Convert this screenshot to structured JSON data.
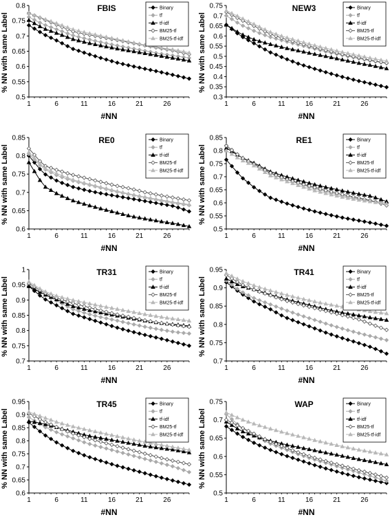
{
  "chart_data": [
    {
      "type": "line",
      "title": "FBIS",
      "xlabel": "#NN",
      "ylabel": "% NN with same Label",
      "ylim": [
        0.5,
        0.8
      ],
      "yticks": [
        "0.5",
        "0.55",
        "0.6",
        "0.65",
        "0.7",
        "0.75",
        "0.8"
      ],
      "xlim": [
        1,
        30
      ],
      "xticks": [
        "1",
        "6",
        "11",
        "16",
        "21",
        "26"
      ],
      "legend": "top-right",
      "series": [
        {
          "name": "Binary",
          "anchors": [
            0.735,
            0.706,
            0.683,
            0.658,
            0.642,
            0.627,
            0.613,
            0.602,
            0.592,
            0.582,
            0.571,
            0.56
          ]
        },
        {
          "name": "tf",
          "anchors": [
            0.762,
            0.738,
            0.72,
            0.702,
            0.69,
            0.679,
            0.669,
            0.66,
            0.651,
            0.642,
            0.635,
            0.628
          ]
        },
        {
          "name": "tf-idf",
          "anchors": [
            0.752,
            0.725,
            0.708,
            0.69,
            0.678,
            0.668,
            0.659,
            0.651,
            0.643,
            0.635,
            0.627,
            0.619
          ]
        },
        {
          "name": "BM25-tf",
          "anchors": [
            0.775,
            0.755,
            0.735,
            0.715,
            0.705,
            0.696,
            0.687,
            0.678,
            0.669,
            0.66,
            0.651,
            0.64
          ]
        },
        {
          "name": "BM25-tf-idf",
          "anchors": [
            0.775,
            0.757,
            0.74,
            0.722,
            0.71,
            0.7,
            0.69,
            0.68,
            0.67,
            0.662,
            0.655,
            0.645
          ]
        }
      ]
    },
    {
      "type": "line",
      "title": "NEW3",
      "xlabel": "#NN",
      "ylabel": "% NN with same Label",
      "ylim": [
        0.3,
        0.75
      ],
      "yticks": [
        "0.3",
        "0.35",
        "0.4",
        "0.45",
        "0.5",
        "0.55",
        "0.6",
        "0.65",
        "0.7",
        "0.75"
      ],
      "xlim": [
        1,
        30
      ],
      "xticks": [
        "1",
        "6",
        "11",
        "16",
        "21",
        "26"
      ],
      "legend": "top-right",
      "series": [
        {
          "name": "Binary",
          "anchors": [
            0.655,
            0.6,
            0.56,
            0.52,
            0.49,
            0.462,
            0.44,
            0.418,
            0.398,
            0.38,
            0.364,
            0.348
          ]
        },
        {
          "name": "tf",
          "anchors": [
            0.7,
            0.655,
            0.622,
            0.595,
            0.575,
            0.556,
            0.538,
            0.52,
            0.505,
            0.49,
            0.477,
            0.465
          ]
        },
        {
          "name": "tf-idf",
          "anchors": [
            0.655,
            0.61,
            0.58,
            0.56,
            0.542,
            0.527,
            0.512,
            0.498,
            0.483,
            0.468,
            0.455,
            0.44
          ]
        },
        {
          "name": "BM25-tf",
          "anchors": [
            0.718,
            0.68,
            0.646,
            0.61,
            0.585,
            0.565,
            0.545,
            0.527,
            0.51,
            0.495,
            0.48,
            0.467
          ]
        },
        {
          "name": "BM25-tf-idf",
          "anchors": [
            0.725,
            0.69,
            0.655,
            0.62,
            0.595,
            0.575,
            0.555,
            0.537,
            0.52,
            0.505,
            0.49,
            0.477
          ]
        }
      ]
    },
    {
      "type": "line",
      "title": "RE0",
      "xlabel": "#NN",
      "ylabel": "% NN with same Label",
      "ylim": [
        0.6,
        0.85
      ],
      "yticks": [
        "0.6",
        "0.65",
        "0.7",
        "0.75",
        "0.8",
        "0.85"
      ],
      "xlim": [
        1,
        30
      ],
      "xticks": [
        "1",
        "6",
        "11",
        "16",
        "21",
        "26"
      ],
      "legend": "top-right",
      "series": [
        {
          "name": "Binary",
          "anchors": [
            0.8,
            0.752,
            0.73,
            0.715,
            0.705,
            0.697,
            0.69,
            0.683,
            0.676,
            0.669,
            0.662,
            0.648
          ]
        },
        {
          "name": "tf",
          "anchors": [
            0.805,
            0.765,
            0.745,
            0.732,
            0.722,
            0.712,
            0.702,
            0.694,
            0.686,
            0.678,
            0.671,
            0.665
          ]
        },
        {
          "name": "tf-idf",
          "anchors": [
            0.782,
            0.718,
            0.695,
            0.678,
            0.666,
            0.655,
            0.645,
            0.635,
            0.628,
            0.621,
            0.615,
            0.607
          ]
        },
        {
          "name": "BM25-tf",
          "anchors": [
            0.82,
            0.774,
            0.76,
            0.748,
            0.738,
            0.728,
            0.718,
            0.71,
            0.7,
            0.692,
            0.685,
            0.678
          ]
        },
        {
          "name": "BM25-tf-idf",
          "anchors": [
            0.81,
            0.768,
            0.75,
            0.735,
            0.724,
            0.714,
            0.704,
            0.695,
            0.687,
            0.68,
            0.673,
            0.667
          ]
        }
      ]
    },
    {
      "type": "line",
      "title": "RE1",
      "xlabel": "#NN",
      "ylabel": "% NN with same Label",
      "ylim": [
        0.5,
        0.85
      ],
      "yticks": [
        "0.5",
        "0.55",
        "0.6",
        "0.65",
        "0.7",
        "0.75",
        "0.8",
        "0.85"
      ],
      "xlim": [
        1,
        30
      ],
      "xticks": [
        "1",
        "6",
        "11",
        "16",
        "21",
        "26"
      ],
      "legend": "top-right",
      "series": [
        {
          "name": "Binary",
          "anchors": [
            0.765,
            0.7,
            0.655,
            0.62,
            0.6,
            0.583,
            0.568,
            0.555,
            0.543,
            0.533,
            0.523,
            0.512
          ]
        },
        {
          "name": "tf",
          "anchors": [
            0.82,
            0.775,
            0.745,
            0.712,
            0.692,
            0.673,
            0.655,
            0.64,
            0.627,
            0.616,
            0.607,
            0.598
          ]
        },
        {
          "name": "tf-idf",
          "anchors": [
            0.81,
            0.775,
            0.75,
            0.72,
            0.702,
            0.686,
            0.671,
            0.658,
            0.646,
            0.635,
            0.625,
            0.605
          ]
        },
        {
          "name": "BM25-tf",
          "anchors": [
            0.818,
            0.775,
            0.745,
            0.715,
            0.693,
            0.675,
            0.66,
            0.645,
            0.632,
            0.62,
            0.608,
            0.59
          ]
        },
        {
          "name": "BM25-tf-idf",
          "anchors": [
            0.8,
            0.765,
            0.74,
            0.705,
            0.685,
            0.666,
            0.648,
            0.634,
            0.622,
            0.612,
            0.604,
            0.597
          ]
        }
      ]
    },
    {
      "type": "line",
      "title": "TR31",
      "xlabel": "#NN",
      "ylabel": "% NN with same Label",
      "ylim": [
        0.7,
        1.0
      ],
      "yticks": [
        "0.7",
        "0.75",
        "0.8",
        "0.85",
        "0.9",
        "0.95",
        "1"
      ],
      "xlim": [
        1,
        30
      ],
      "xticks": [
        "1",
        "6",
        "11",
        "16",
        "21",
        "26"
      ],
      "legend": "top-right",
      "series": [
        {
          "name": "Binary",
          "anchors": [
            0.945,
            0.905,
            0.88,
            0.855,
            0.84,
            0.825,
            0.81,
            0.797,
            0.785,
            0.774,
            0.762,
            0.75
          ]
        },
        {
          "name": "tf",
          "anchors": [
            0.95,
            0.92,
            0.895,
            0.87,
            0.855,
            0.843,
            0.833,
            0.822,
            0.812,
            0.803,
            0.795,
            0.79
          ]
        },
        {
          "name": "tf-idf",
          "anchors": [
            0.945,
            0.92,
            0.9,
            0.88,
            0.868,
            0.858,
            0.849,
            0.84,
            0.832,
            0.825,
            0.82,
            0.815
          ]
        },
        {
          "name": "BM25-tf",
          "anchors": [
            0.955,
            0.925,
            0.905,
            0.89,
            0.877,
            0.865,
            0.853,
            0.843,
            0.833,
            0.825,
            0.818,
            0.812
          ]
        },
        {
          "name": "BM25-tf-idf",
          "anchors": [
            0.96,
            0.93,
            0.912,
            0.9,
            0.89,
            0.88,
            0.871,
            0.862,
            0.853,
            0.845,
            0.838,
            0.832
          ]
        }
      ]
    },
    {
      "type": "line",
      "title": "TR41",
      "xlabel": "#NN",
      "ylabel": "% NN with same Label",
      "ylim": [
        0.7,
        0.95
      ],
      "yticks": [
        "0.7",
        "0.75",
        "0.8",
        "0.85",
        "0.9",
        "0.95"
      ],
      "xlim": [
        1,
        30
      ],
      "xticks": [
        "1",
        "6",
        "11",
        "16",
        "21",
        "26"
      ],
      "legend": "top-right",
      "series": [
        {
          "name": "Binary",
          "anchors": [
            0.915,
            0.885,
            0.86,
            0.842,
            0.82,
            0.805,
            0.79,
            0.775,
            0.762,
            0.75,
            0.737,
            0.72
          ]
        },
        {
          "name": "tf",
          "anchors": [
            0.92,
            0.89,
            0.87,
            0.855,
            0.84,
            0.826,
            0.813,
            0.8,
            0.788,
            0.777,
            0.767,
            0.757
          ]
        },
        {
          "name": "tf-idf",
          "anchors": [
            0.925,
            0.905,
            0.895,
            0.882,
            0.87,
            0.86,
            0.85,
            0.84,
            0.832,
            0.825,
            0.818,
            0.812
          ]
        },
        {
          "name": "BM25-tf",
          "anchors": [
            0.935,
            0.91,
            0.893,
            0.88,
            0.866,
            0.855,
            0.845,
            0.835,
            0.825,
            0.815,
            0.8,
            0.785
          ]
        },
        {
          "name": "BM25-tf-idf",
          "anchors": [
            0.94,
            0.92,
            0.905,
            0.893,
            0.882,
            0.872,
            0.863,
            0.855,
            0.848,
            0.841,
            0.835,
            0.83
          ]
        }
      ]
    },
    {
      "type": "line",
      "title": "TR45",
      "xlabel": "#NN",
      "ylabel": "% NN with same Label",
      "ylim": [
        0.6,
        0.95
      ],
      "yticks": [
        "0.6",
        "0.65",
        "0.7",
        "0.75",
        "0.8",
        "0.85",
        "0.9",
        "0.95"
      ],
      "xlim": [
        1,
        30
      ],
      "xticks": [
        "1",
        "6",
        "11",
        "16",
        "21",
        "26"
      ],
      "legend": "top-right",
      "series": [
        {
          "name": "Binary",
          "anchors": [
            0.87,
            0.825,
            0.79,
            0.762,
            0.74,
            0.722,
            0.705,
            0.69,
            0.675,
            0.66,
            0.646,
            0.632
          ]
        },
        {
          "name": "tf",
          "anchors": [
            0.89,
            0.855,
            0.83,
            0.81,
            0.79,
            0.775,
            0.76,
            0.745,
            0.73,
            0.715,
            0.7,
            0.68
          ]
        },
        {
          "name": "tf-idf",
          "anchors": [
            0.875,
            0.865,
            0.85,
            0.835,
            0.82,
            0.81,
            0.8,
            0.79,
            0.78,
            0.772,
            0.765,
            0.755
          ]
        },
        {
          "name": "BM25-tf",
          "anchors": [
            0.905,
            0.875,
            0.85,
            0.828,
            0.81,
            0.795,
            0.78,
            0.765,
            0.75,
            0.735,
            0.722,
            0.71
          ]
        },
        {
          "name": "BM25-tf-idf",
          "anchors": [
            0.91,
            0.89,
            0.87,
            0.855,
            0.842,
            0.83,
            0.818,
            0.806,
            0.795,
            0.785,
            0.775,
            0.765
          ]
        }
      ]
    },
    {
      "type": "line",
      "title": "WAP",
      "xlabel": "#NN",
      "ylabel": "% NN with same Label",
      "ylim": [
        0.5,
        0.75
      ],
      "yticks": [
        "0.5",
        "0.55",
        "0.6",
        "0.65",
        "0.7",
        "0.75"
      ],
      "xlim": [
        1,
        30
      ],
      "xticks": [
        "1",
        "6",
        "11",
        "16",
        "21",
        "26"
      ],
      "legend": "top-right",
      "series": [
        {
          "name": "Binary",
          "anchors": [
            0.682,
            0.656,
            0.635,
            0.618,
            0.603,
            0.59,
            0.577,
            0.565,
            0.554,
            0.544,
            0.535,
            0.527
          ]
        },
        {
          "name": "tf",
          "anchors": [
            0.715,
            0.68,
            0.655,
            0.635,
            0.62,
            0.605,
            0.592,
            0.58,
            0.568,
            0.557,
            0.545,
            0.533
          ]
        },
        {
          "name": "tf-idf",
          "anchors": [
            0.695,
            0.67,
            0.655,
            0.643,
            0.633,
            0.625,
            0.617,
            0.609,
            0.601,
            0.593,
            0.586,
            0.578
          ]
        },
        {
          "name": "BM25-tf",
          "anchors": [
            0.7,
            0.68,
            0.66,
            0.64,
            0.625,
            0.61,
            0.597,
            0.585,
            0.574,
            0.563,
            0.553,
            0.542
          ]
        },
        {
          "name": "BM25-tf-idf",
          "anchors": [
            0.72,
            0.702,
            0.688,
            0.676,
            0.665,
            0.655,
            0.645,
            0.636,
            0.627,
            0.619,
            0.612,
            0.605
          ]
        }
      ]
    }
  ]
}
